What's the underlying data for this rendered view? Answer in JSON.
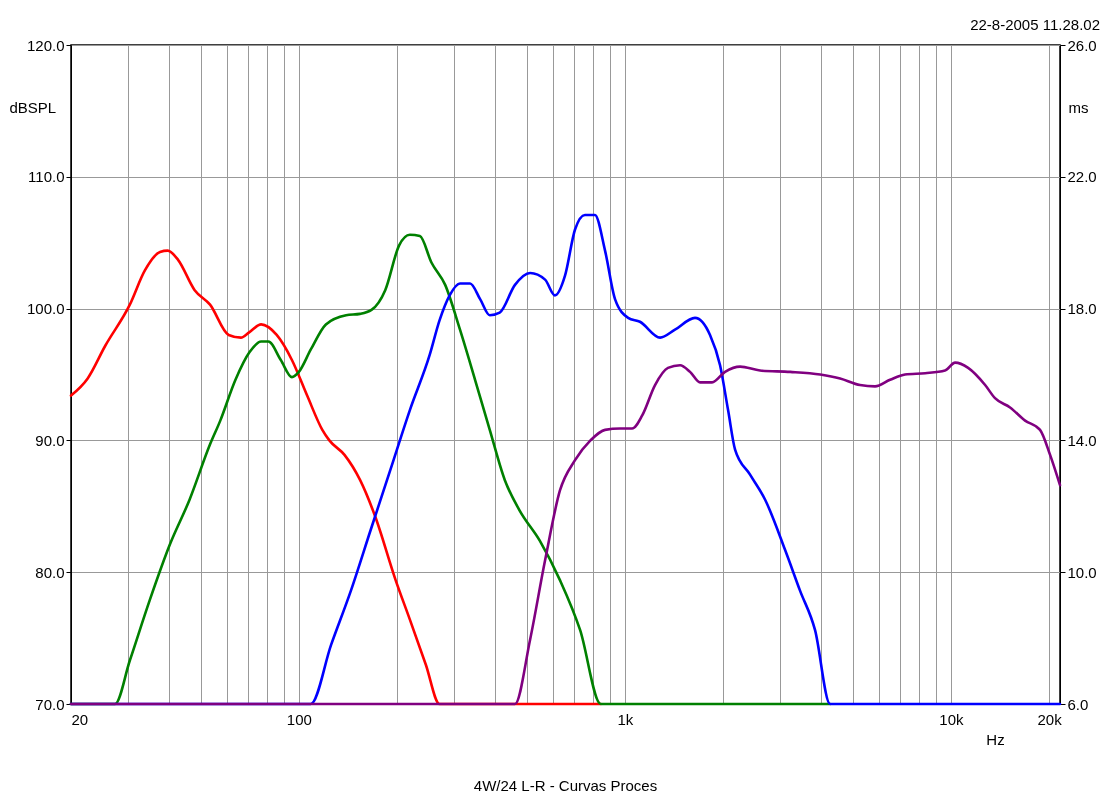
{
  "chart_data": {
    "type": "line",
    "xlabel": "Hz",
    "ylabel": "dBSPL",
    "y2label": "ms",
    "annotations": [
      "22-8-2005 11.28.02",
      "4W/24 L-R - Curvas Proces"
    ],
    "log": "x",
    "grid": true,
    "legend": false,
    "marker": "none",
    "line_style": "solid",
    "xlim": [
      20,
      21600
    ],
    "xticks": [
      {
        "value": 20,
        "label": "20"
      },
      {
        "value": 30,
        "label": null
      },
      {
        "value": 40,
        "label": null
      },
      {
        "value": 50,
        "label": null
      },
      {
        "value": 60,
        "label": null
      },
      {
        "value": 70,
        "label": null
      },
      {
        "value": 80,
        "label": null
      },
      {
        "value": 90,
        "label": null
      },
      {
        "value": 100,
        "label": "100"
      },
      {
        "value": 200,
        "label": null
      },
      {
        "value": 300,
        "label": null
      },
      {
        "value": 400,
        "label": null
      },
      {
        "value": 500,
        "label": null
      },
      {
        "value": 600,
        "label": null
      },
      {
        "value": 700,
        "label": null
      },
      {
        "value": 800,
        "label": null
      },
      {
        "value": 900,
        "label": null
      },
      {
        "value": 1000,
        "label": "1k"
      },
      {
        "value": 2000,
        "label": null
      },
      {
        "value": 3000,
        "label": null
      },
      {
        "value": 4000,
        "label": null
      },
      {
        "value": 5000,
        "label": null
      },
      {
        "value": 6000,
        "label": null
      },
      {
        "value": 7000,
        "label": null
      },
      {
        "value": 8000,
        "label": null
      },
      {
        "value": 9000,
        "label": null
      },
      {
        "value": 10000,
        "label": "10k"
      },
      {
        "value": 20000,
        "label": "20k"
      }
    ],
    "ylim": [
      70,
      120
    ],
    "yticks": [
      {
        "value": 70,
        "label": "70.0"
      },
      {
        "value": 80,
        "label": "80.0"
      },
      {
        "value": 90,
        "label": "90.0"
      },
      {
        "value": 100,
        "label": "100.0"
      },
      {
        "value": 110,
        "label": "110.0"
      },
      {
        "value": 120,
        "label": "120.0"
      }
    ],
    "y2lim": [
      6,
      26
    ],
    "y2ticks": [
      {
        "value": 6,
        "label": "6.0"
      },
      {
        "value": 10,
        "label": "10.0"
      },
      {
        "value": 14,
        "label": "14.0"
      },
      {
        "value": 18,
        "label": "18.0"
      },
      {
        "value": 22,
        "label": "22.0"
      },
      {
        "value": 26,
        "label": "26.0"
      }
    ],
    "series": [
      {
        "color": "#ff0000",
        "x": [
          20,
          22.5,
          25.5,
          30.3,
          33.7,
          37.5,
          39.6,
          42.6,
          47.9,
          53.4,
          60.9,
          66.4,
          70.4,
          76.6,
          85.5,
          95.2,
          106,
          118,
          124,
          138,
          154,
          171,
          198,
          219,
          245,
          270,
          843
        ],
        "values": [
          93.4,
          94.7,
          97.2,
          100.3,
          102.9,
          104.3,
          104.4,
          103.7,
          101.4,
          100.3,
          98.0,
          97.8,
          98.2,
          98.8,
          98.0,
          96.1,
          93.4,
          90.8,
          90.0,
          88.9,
          87.0,
          84.3,
          79.4,
          76.4,
          73.0,
          70,
          70
        ]
      },
      {
        "color": "#008000",
        "x": [
          20,
          27.3,
          30.3,
          34.9,
          40.2,
          46.2,
          53.4,
          57.4,
          63.9,
          70.6,
          76.6,
          80.6,
          88.0,
          95.2,
          100,
          108.8,
          121,
          139.6,
          154,
          167,
          184,
          203,
          219,
          235,
          255,
          281,
          312,
          347,
          385,
          428,
          475,
          548,
          632,
          729,
          843,
          4258
        ],
        "values": [
          70,
          70,
          73.3,
          77.9,
          82.1,
          85.5,
          89.7,
          91.5,
          94.6,
          96.7,
          97.5,
          97.5,
          96.1,
          94.8,
          95.2,
          96.9,
          98.8,
          99.5,
          99.6,
          99.9,
          101.4,
          104.8,
          105.6,
          105.5,
          103.5,
          101.8,
          98.4,
          94.6,
          90.8,
          87.0,
          84.7,
          82.4,
          79.4,
          75.6,
          70,
          70
        ]
      },
      {
        "color": "#0000ff",
        "x": [
          20,
          108.8,
          125.6,
          144.4,
          166,
          191,
          219,
          252,
          270,
          290,
          312,
          335,
          360,
          385,
          413,
          460,
          512,
          569,
          610,
          655,
          703,
          754,
          809,
          869,
          933,
          1023,
          1112,
          1282,
          1424,
          1640,
          1824,
          1958,
          2072,
          2177,
          2420,
          2692,
          3098,
          3444,
          3830,
          4258,
          21600
        ],
        "values": [
          70,
          70,
          74.5,
          78.6,
          83.2,
          87.8,
          92.3,
          96.5,
          99.1,
          101.0,
          101.9,
          101.9,
          100.7,
          99.5,
          99.7,
          101.8,
          102.7,
          102.2,
          101.0,
          102.5,
          106.0,
          107.1,
          107.1,
          104.4,
          100.7,
          99.3,
          99.0,
          97.8,
          98.4,
          99.3,
          98.0,
          95.7,
          92.3,
          89.3,
          87.4,
          85.5,
          81.7,
          78.6,
          75.6,
          70,
          70
        ]
      },
      {
        "color": "#800080",
        "x": [
          20,
          460,
          512,
          569,
          632,
          703,
          784,
          869,
          966,
          1052,
          1130,
          1237,
          1355,
          1476,
          1584,
          1700,
          1850,
          2028,
          2256,
          2597,
          3213,
          3972,
          4572,
          5262,
          5850,
          6504,
          7230,
          8338,
          9590,
          10300,
          11290,
          12730,
          13650,
          15180,
          16880,
          18760,
          20140,
          21600
        ],
        "values": [
          70,
          70,
          74.9,
          80.9,
          86.2,
          88.5,
          90.0,
          90.8,
          90.9,
          90.9,
          91.9,
          94.2,
          95.5,
          95.7,
          95.2,
          94.4,
          94.4,
          95.2,
          95.6,
          95.3,
          95.2,
          95.0,
          94.7,
          94.2,
          94.1,
          94.6,
          95.0,
          95.1,
          95.3,
          95.9,
          95.5,
          94.2,
          93.2,
          92.5,
          91.5,
          90.8,
          88.9,
          86.6
        ]
      }
    ]
  }
}
